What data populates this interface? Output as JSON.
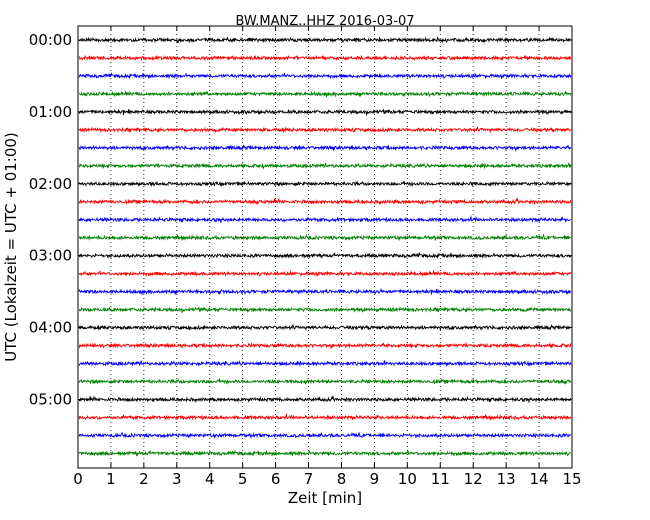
{
  "chart_data": {
    "type": "line",
    "title": "BW.MANZ..HHZ 2016-03-07",
    "xlabel": "Zeit  [min]",
    "ylabel": "UTC (Lokalzeit = UTC + 01:00)",
    "xlim": [
      0,
      15
    ],
    "x_ticks": [
      0,
      1,
      2,
      3,
      4,
      5,
      6,
      7,
      8,
      9,
      10,
      11,
      12,
      13,
      14,
      15
    ],
    "y_tick_labels": [
      "00:00",
      "01:00",
      "02:00",
      "03:00",
      "04:00",
      "05:00"
    ],
    "traces_per_hour": 4,
    "trace_count": 24,
    "trace_interval_min": 15,
    "color_cycle": [
      "#000000",
      "#ff0000",
      "#0000ff",
      "#008000"
    ],
    "grid": "vertical-dotted",
    "legend": "none",
    "traces": [
      {
        "start": "00:00",
        "color": "#000000"
      },
      {
        "start": "00:15",
        "color": "#ff0000"
      },
      {
        "start": "00:30",
        "color": "#0000ff"
      },
      {
        "start": "00:45",
        "color": "#008000"
      },
      {
        "start": "01:00",
        "color": "#000000"
      },
      {
        "start": "01:15",
        "color": "#ff0000"
      },
      {
        "start": "01:30",
        "color": "#0000ff"
      },
      {
        "start": "01:45",
        "color": "#008000"
      },
      {
        "start": "02:00",
        "color": "#000000"
      },
      {
        "start": "02:15",
        "color": "#ff0000"
      },
      {
        "start": "02:30",
        "color": "#0000ff"
      },
      {
        "start": "02:45",
        "color": "#008000"
      },
      {
        "start": "03:00",
        "color": "#000000"
      },
      {
        "start": "03:15",
        "color": "#ff0000"
      },
      {
        "start": "03:30",
        "color": "#0000ff"
      },
      {
        "start": "03:45",
        "color": "#008000"
      },
      {
        "start": "04:00",
        "color": "#000000"
      },
      {
        "start": "04:15",
        "color": "#ff0000"
      },
      {
        "start": "04:30",
        "color": "#0000ff"
      },
      {
        "start": "04:45",
        "color": "#008000"
      },
      {
        "start": "05:00",
        "color": "#000000"
      },
      {
        "start": "05:15",
        "color": "#ff0000"
      },
      {
        "start": "05:30",
        "color": "#0000ff"
      },
      {
        "start": "05:45",
        "color": "#008000"
      }
    ]
  }
}
